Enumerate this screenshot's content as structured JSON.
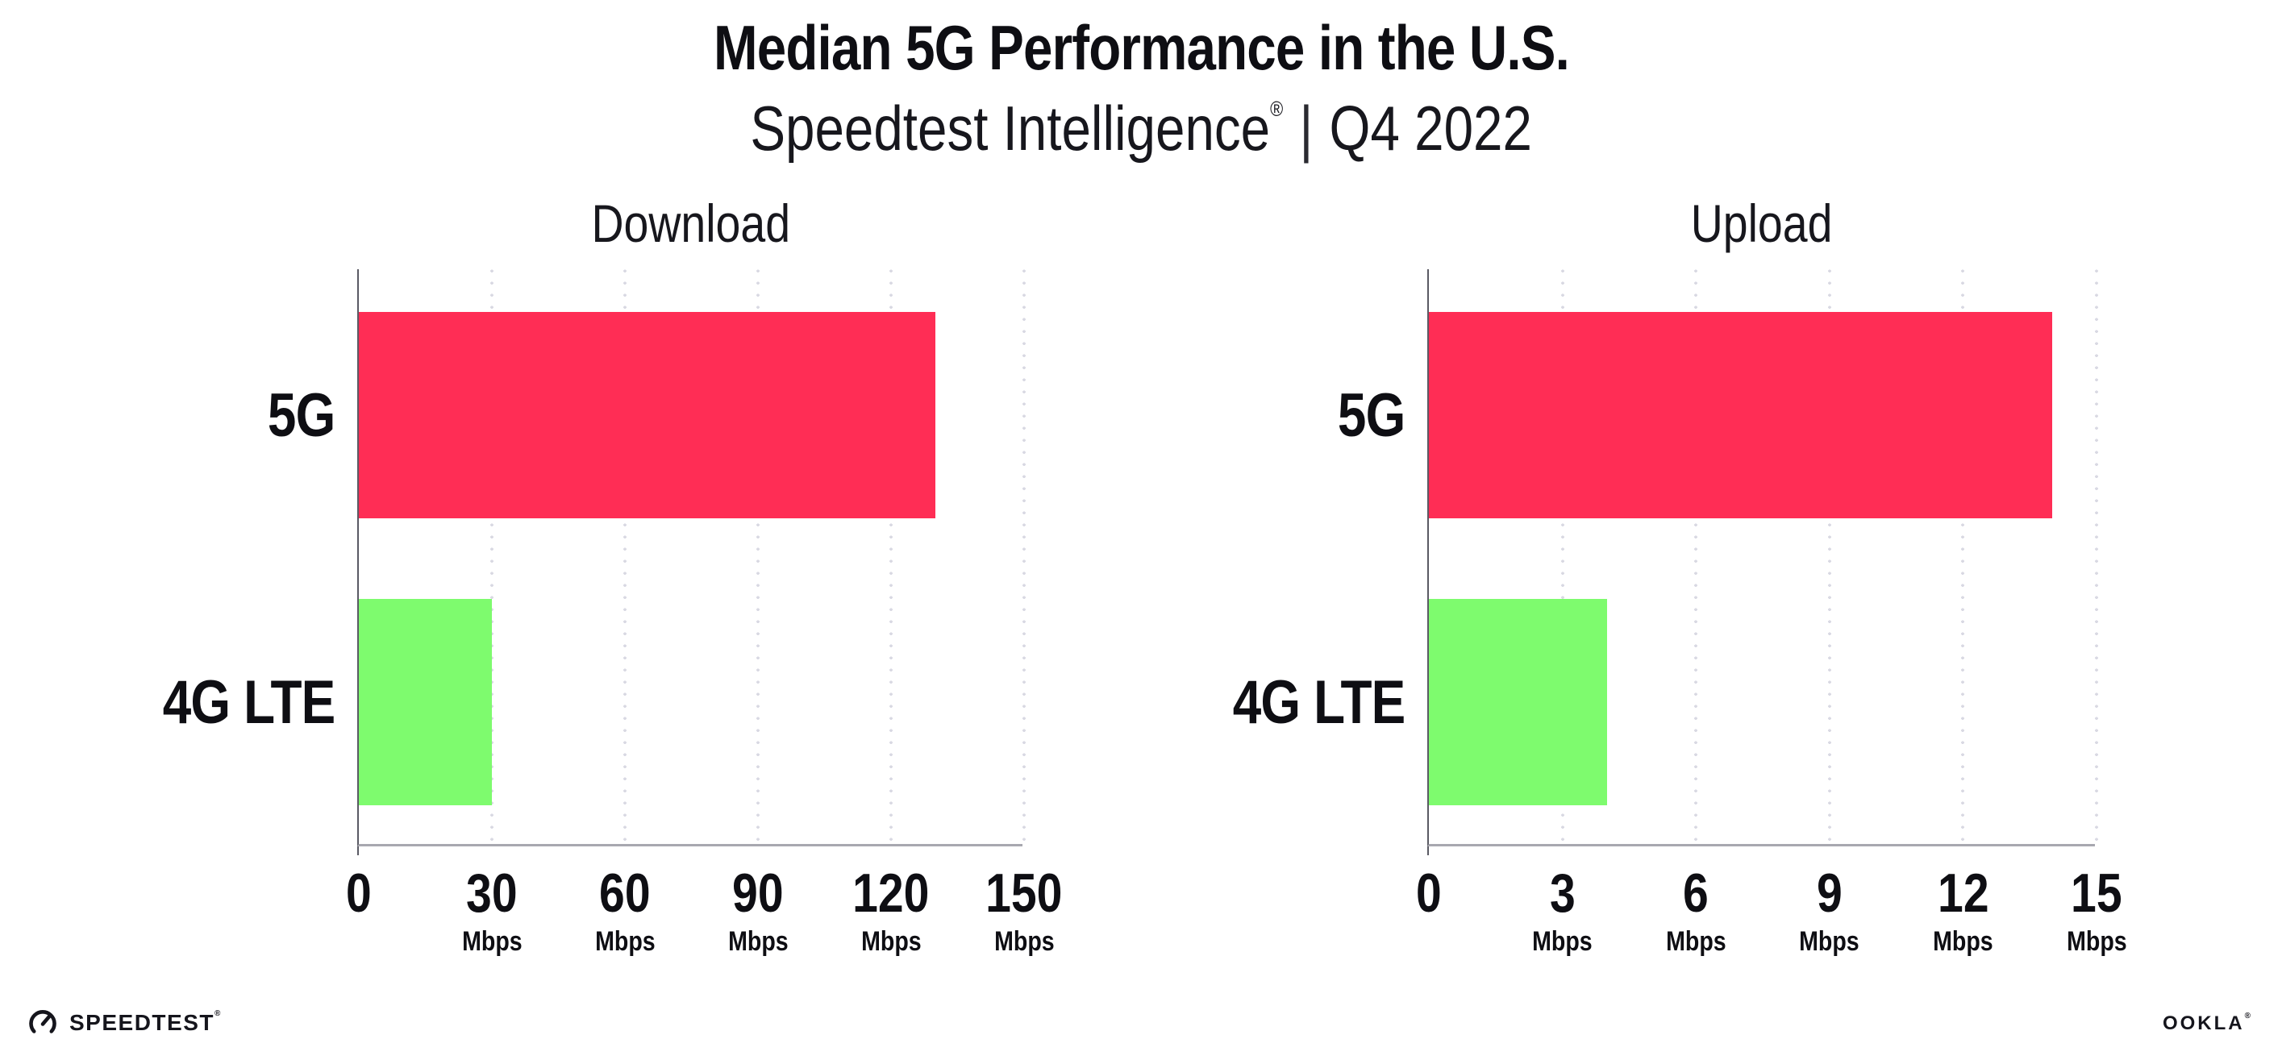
{
  "header": {
    "title": "Median 5G Performance in the U.S.",
    "subtitle_brand": "Speedtest Intelligence",
    "subtitle_reg": "®",
    "subtitle_sep": "|",
    "subtitle_period": "Q4 2022"
  },
  "chart_data": [
    {
      "type": "bar",
      "orientation": "horizontal",
      "title": "Download",
      "categories": [
        "5G",
        "4G LTE"
      ],
      "values": [
        130,
        30
      ],
      "unit": "Mbps",
      "xlabel": "",
      "ylabel": "",
      "xlim": [
        0,
        150
      ],
      "xticks": [
        0,
        30,
        60,
        90,
        120,
        150
      ],
      "bar_colors": [
        "#FF2D55",
        "#7EFB6E"
      ],
      "grid": "dotted vertical gridlines at each tick",
      "legend": "none"
    },
    {
      "type": "bar",
      "orientation": "horizontal",
      "title": "Upload",
      "categories": [
        "5G",
        "4G LTE"
      ],
      "values": [
        14,
        4
      ],
      "unit": "Mbps",
      "xlabel": "",
      "ylabel": "",
      "xlim": [
        0,
        15
      ],
      "xticks": [
        0,
        3,
        6,
        9,
        12,
        15
      ],
      "bar_colors": [
        "#FF2D55",
        "#7EFB6E"
      ],
      "grid": "dotted vertical gridlines at each tick",
      "legend": "none"
    }
  ],
  "footer": {
    "speedtest_label": "SPEEDTEST",
    "speedtest_reg": "®",
    "ookla_label": "OOKLA",
    "ookla_reg": "®"
  },
  "colors": {
    "bar_5g": "#FF2D55",
    "bar_4g_lte": "#7EFB6E",
    "grid_dots": "#D9D9E3",
    "x_axis": "#A8A8B0",
    "y_axis": "#5A5A64",
    "text": "#0E0E13"
  }
}
